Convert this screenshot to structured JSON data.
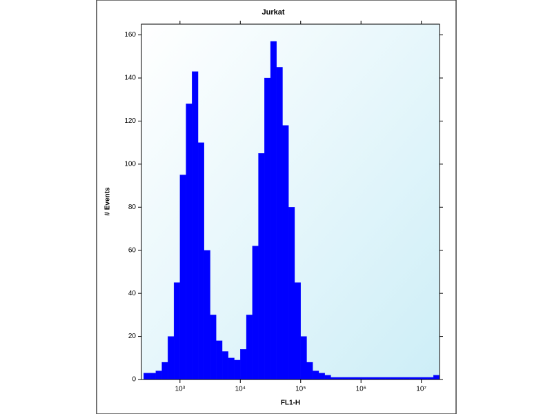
{
  "chart_data": {
    "type": "histogram",
    "title": "Jurkat",
    "x_label": "FL1-H",
    "y_label": "# Events",
    "x_scale": "log",
    "color": "#0000ff",
    "bins": [
      251,
      316,
      398,
      501,
      631,
      794,
      1000,
      1259,
      1585,
      1995,
      2512,
      3162,
      3981,
      5012,
      6310,
      7943,
      10000,
      12589,
      15849,
      19953,
      25119,
      31623,
      39811,
      50119,
      63096,
      79433,
      100000,
      125893,
      158489,
      199526,
      251189,
      316228,
      398107,
      501187,
      630957,
      794328,
      1000000,
      1258925,
      1584893,
      1995262,
      2511886,
      3162278,
      3981072,
      5011872,
      6309573,
      7943282,
      10000000,
      12589254,
      15848932,
      19952623
    ],
    "values": [
      3,
      3,
      4,
      8,
      20,
      45,
      95,
      128,
      143,
      110,
      60,
      30,
      18,
      13,
      10,
      9,
      14,
      30,
      62,
      105,
      140,
      157,
      145,
      118,
      80,
      45,
      20,
      8,
      4,
      3,
      2,
      1,
      1,
      1,
      1,
      1,
      1,
      1,
      1,
      1,
      1,
      1,
      1,
      1,
      1,
      1,
      1,
      1,
      2
    ],
    "xlim": [
      230,
      20000000
    ],
    "xticks": [
      {
        "value": 1000,
        "label": "10³"
      },
      {
        "value": 10000,
        "label": "10⁴"
      },
      {
        "value": 100000,
        "label": "10⁵"
      },
      {
        "value": 1000000,
        "label": "10⁶"
      },
      {
        "value": 10000000,
        "label": "10⁷"
      }
    ],
    "ylim": [
      0,
      165
    ],
    "yticks": [
      0,
      20,
      40,
      60,
      80,
      100,
      120,
      140,
      160
    ]
  }
}
